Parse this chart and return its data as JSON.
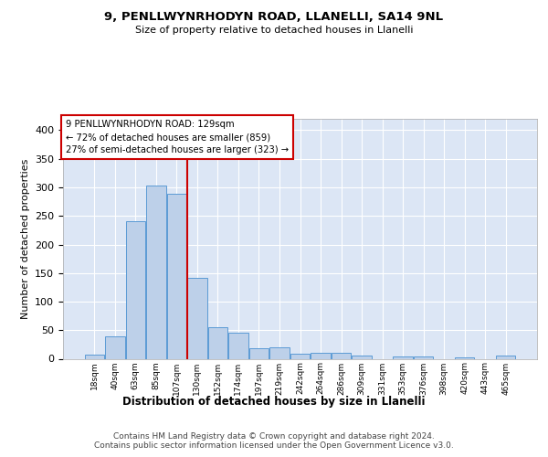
{
  "title_line1": "9, PENLLWYNRHODYN ROAD, LLANELLI, SA14 9NL",
  "title_line2": "Size of property relative to detached houses in Llanelli",
  "xlabel": "Distribution of detached houses by size in Llanelli",
  "ylabel": "Number of detached properties",
  "bin_labels": [
    "18sqm",
    "40sqm",
    "63sqm",
    "85sqm",
    "107sqm",
    "130sqm",
    "152sqm",
    "174sqm",
    "197sqm",
    "219sqm",
    "242sqm",
    "264sqm",
    "286sqm",
    "309sqm",
    "331sqm",
    "353sqm",
    "376sqm",
    "398sqm",
    "420sqm",
    "443sqm",
    "465sqm"
  ],
  "bar_heights": [
    8,
    39,
    241,
    303,
    289,
    142,
    55,
    45,
    18,
    20,
    9,
    10,
    10,
    5,
    0,
    4,
    4,
    0,
    2,
    0,
    5
  ],
  "bar_color": "#bdd0e9",
  "bar_edge_color": "#5b9bd5",
  "ylim": [
    0,
    420
  ],
  "yticks": [
    0,
    50,
    100,
    150,
    200,
    250,
    300,
    350,
    400
  ],
  "background_color": "#dce6f5",
  "grid_color": "#ffffff",
  "vline_x": 5.0,
  "vline_color": "#cc0000",
  "annotation_text": "9 PENLLWYNRHODYN ROAD: 129sqm\n← 72% of detached houses are smaller (859)\n27% of semi-detached houses are larger (323) →",
  "annotation_box_color": "#ffffff",
  "annotation_box_edge_color": "#cc0000",
  "footer_line1": "Contains HM Land Registry data © Crown copyright and database right 2024.",
  "footer_line2": "Contains public sector information licensed under the Open Government Licence v3.0."
}
